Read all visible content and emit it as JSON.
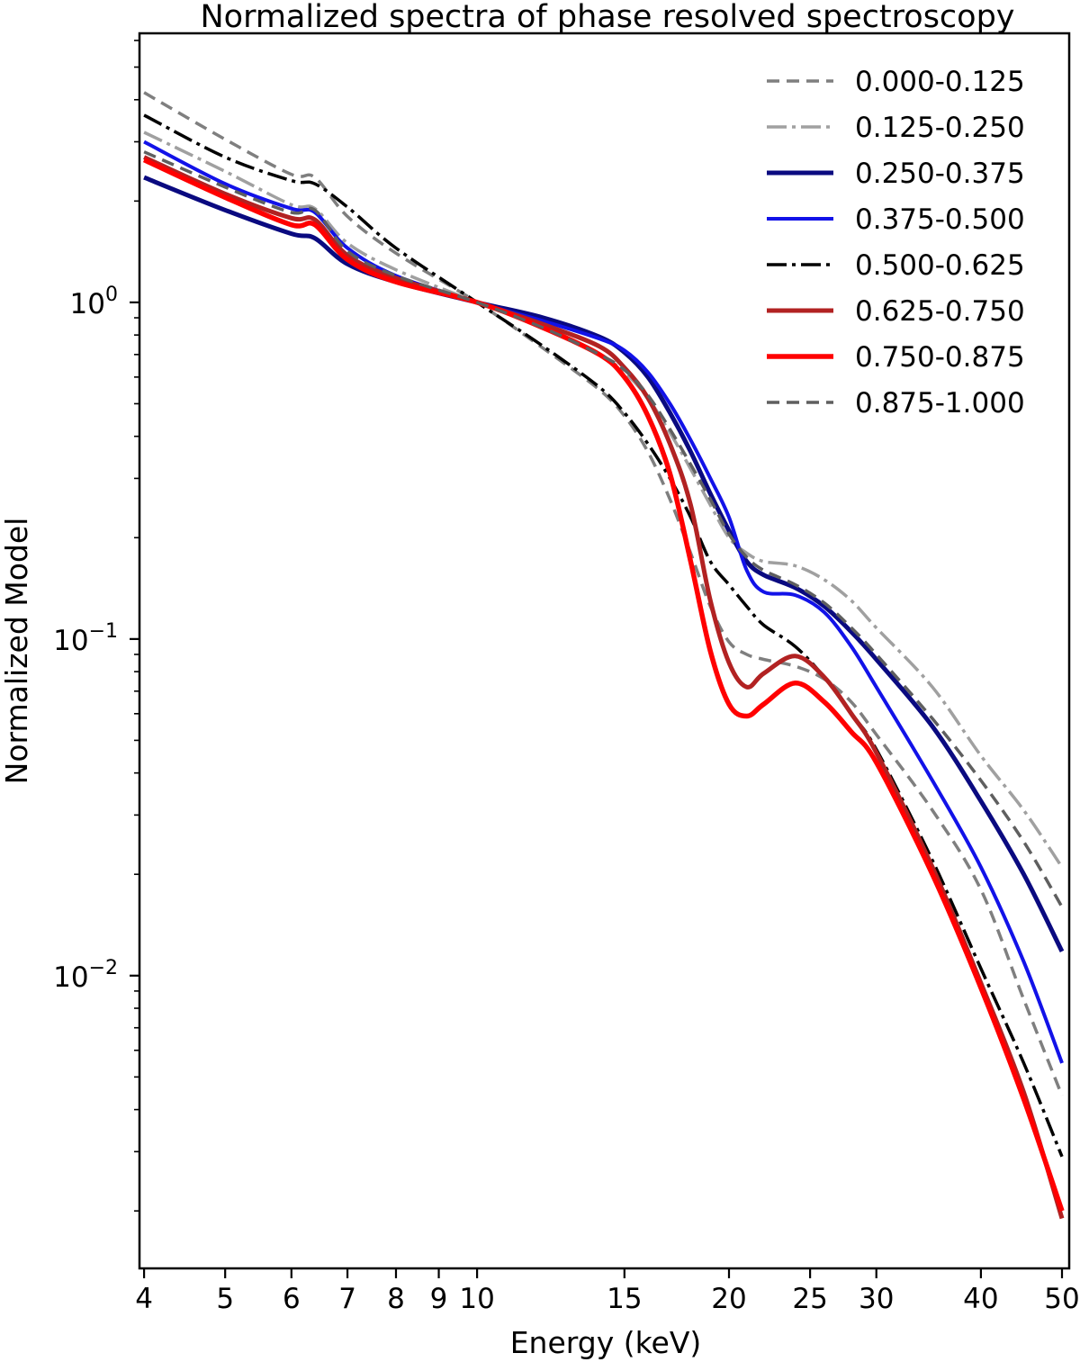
{
  "chart_data": {
    "type": "line",
    "title": "Normalized spectra of phase resolved spectroscopy",
    "xlabel": "Energy (keV)",
    "ylabel": "Normalized Model",
    "xscale": "log",
    "yscale": "log",
    "xlim": [
      3.95,
      51
    ],
    "ylim": [
      0.00135,
      6.3
    ],
    "legend_position": "top-right",
    "x_ticks": [
      {
        "value": 4,
        "label": "4"
      },
      {
        "value": 5,
        "label": "5"
      },
      {
        "value": 6,
        "label": "6"
      },
      {
        "value": 7,
        "label": "7"
      },
      {
        "value": 8,
        "label": "8"
      },
      {
        "value": 9,
        "label": "9"
      },
      {
        "value": 10,
        "label": "10"
      },
      {
        "value": 15,
        "label": "15"
      },
      {
        "value": 20,
        "label": "20"
      },
      {
        "value": 25,
        "label": "25"
      },
      {
        "value": 30,
        "label": "30"
      },
      {
        "value": 40,
        "label": "40"
      },
      {
        "value": 50,
        "label": "50"
      }
    ],
    "y_ticks": [
      {
        "value": 1,
        "base": "10",
        "exp": "0"
      },
      {
        "value": 0.1,
        "base": "10",
        "exp": "−1"
      },
      {
        "value": 0.01,
        "base": "10",
        "exp": "−2"
      }
    ],
    "x": [
      4,
      5,
      6,
      6.4,
      7,
      8,
      10,
      12,
      14,
      15,
      16,
      17,
      18,
      19,
      20,
      21,
      22,
      24,
      26,
      28,
      30,
      35,
      40,
      45,
      50
    ],
    "series": [
      {
        "name": "0.000-0.125",
        "color": "#7f7f7f",
        "dash": "14,8",
        "width": 3.5,
        "values": [
          4.2,
          3.05,
          2.4,
          2.35,
          1.8,
          1.4,
          1.0,
          0.73,
          0.55,
          0.46,
          0.36,
          0.26,
          0.18,
          0.125,
          0.098,
          0.09,
          0.087,
          0.083,
          0.076,
          0.065,
          0.052,
          0.031,
          0.018,
          0.0085,
          0.0044
        ]
      },
      {
        "name": "0.125-0.250",
        "color": "#a0a0a0",
        "dash": "22,6,4,6",
        "width": 3.5,
        "values": [
          3.2,
          2.45,
          1.95,
          1.9,
          1.5,
          1.25,
          1.0,
          0.84,
          0.7,
          0.62,
          0.52,
          0.41,
          0.32,
          0.25,
          0.2,
          0.18,
          0.17,
          0.165,
          0.15,
          0.13,
          0.108,
          0.072,
          0.045,
          0.031,
          0.021
        ]
      },
      {
        "name": "0.250-0.375",
        "color": "#0a0a80",
        "dash": "",
        "width": 5,
        "values": [
          2.35,
          1.88,
          1.6,
          1.55,
          1.3,
          1.15,
          1.0,
          0.9,
          0.79,
          0.71,
          0.6,
          0.47,
          0.36,
          0.27,
          0.21,
          0.17,
          0.155,
          0.142,
          0.125,
          0.105,
          0.087,
          0.055,
          0.033,
          0.02,
          0.0118
        ]
      },
      {
        "name": "0.375-0.500",
        "color": "#1212e8",
        "dash": "",
        "width": 4,
        "values": [
          3.0,
          2.25,
          1.9,
          1.85,
          1.45,
          1.2,
          1.0,
          0.88,
          0.78,
          0.72,
          0.62,
          0.5,
          0.39,
          0.3,
          0.23,
          0.16,
          0.138,
          0.135,
          0.12,
          0.095,
          0.072,
          0.038,
          0.021,
          0.011,
          0.0055
        ]
      },
      {
        "name": "0.500-0.625",
        "color": "#000000",
        "dash": "22,6,4,6",
        "width": 3.5,
        "values": [
          3.6,
          2.7,
          2.3,
          2.25,
          1.92,
          1.45,
          1.0,
          0.74,
          0.56,
          0.47,
          0.38,
          0.3,
          0.23,
          0.17,
          0.145,
          0.125,
          0.11,
          0.095,
          0.077,
          0.06,
          0.047,
          0.022,
          0.0105,
          0.0055,
          0.0029
        ]
      },
      {
        "name": "0.625-0.750",
        "color": "#b22222",
        "dash": "",
        "width": 5,
        "values": [
          2.7,
          2.1,
          1.78,
          1.76,
          1.38,
          1.18,
          1.0,
          0.86,
          0.74,
          0.64,
          0.52,
          0.38,
          0.25,
          0.13,
          0.085,
          0.072,
          0.079,
          0.089,
          0.077,
          0.06,
          0.046,
          0.021,
          0.0095,
          0.0045,
          0.0019
        ]
      },
      {
        "name": "0.750-0.875",
        "color": "#ff0000",
        "dash": "",
        "width": 5.5,
        "values": [
          2.65,
          2.05,
          1.7,
          1.7,
          1.34,
          1.15,
          1.0,
          0.84,
          0.7,
          0.6,
          0.46,
          0.31,
          0.17,
          0.092,
          0.064,
          0.059,
          0.064,
          0.074,
          0.065,
          0.053,
          0.043,
          0.02,
          0.0092,
          0.0043,
          0.002
        ]
      },
      {
        "name": "0.875-1.000",
        "color": "#5f5f5f",
        "dash": "14,8",
        "width": 3.5,
        "values": [
          2.8,
          2.2,
          1.85,
          1.88,
          1.42,
          1.2,
          1.0,
          0.84,
          0.7,
          0.63,
          0.53,
          0.42,
          0.33,
          0.26,
          0.205,
          0.175,
          0.16,
          0.145,
          0.128,
          0.108,
          0.09,
          0.058,
          0.038,
          0.025,
          0.016
        ]
      }
    ]
  }
}
